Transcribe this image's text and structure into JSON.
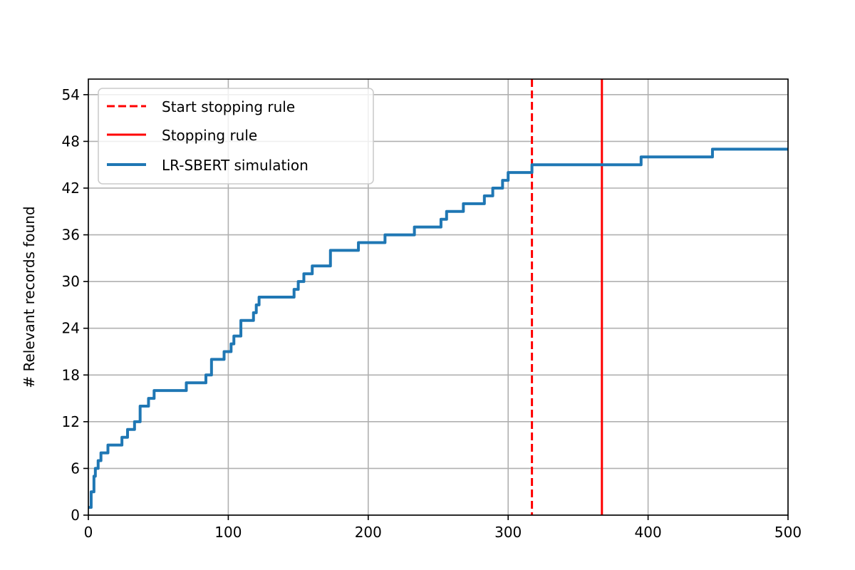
{
  "chart_data": {
    "type": "line",
    "title": "",
    "xlabel": "",
    "ylabel": "# Relevant records found",
    "xlim": [
      0,
      500
    ],
    "ylim": [
      0,
      56
    ],
    "xticks": [
      0,
      100,
      200,
      300,
      400,
      500
    ],
    "yticks": [
      0,
      6,
      12,
      18,
      24,
      30,
      36,
      42,
      48,
      54
    ],
    "grid": true,
    "legend_position": "top-left",
    "vlines": [
      {
        "name": "Start stopping rule",
        "x": 317,
        "style": "dashed",
        "color": "#ff0000"
      },
      {
        "name": "Stopping rule",
        "x": 367,
        "style": "solid",
        "color": "#ff0000"
      }
    ],
    "series": [
      {
        "name": "LR-SBERT simulation",
        "color": "#1f77b4",
        "step": true,
        "points": [
          [
            0,
            1
          ],
          [
            2,
            3
          ],
          [
            4,
            5
          ],
          [
            5,
            6
          ],
          [
            7,
            7
          ],
          [
            9,
            8
          ],
          [
            14,
            9
          ],
          [
            24,
            10
          ],
          [
            28,
            11
          ],
          [
            33,
            12
          ],
          [
            37,
            14
          ],
          [
            43,
            15
          ],
          [
            47,
            16
          ],
          [
            70,
            17
          ],
          [
            84,
            18
          ],
          [
            88,
            20
          ],
          [
            97,
            21
          ],
          [
            102,
            22
          ],
          [
            104,
            23
          ],
          [
            109,
            25
          ],
          [
            118,
            26
          ],
          [
            120,
            27
          ],
          [
            122,
            28
          ],
          [
            147,
            29
          ],
          [
            150,
            30
          ],
          [
            154,
            31
          ],
          [
            160,
            32
          ],
          [
            173,
            34
          ],
          [
            193,
            35
          ],
          [
            212,
            36
          ],
          [
            233,
            37
          ],
          [
            252,
            38
          ],
          [
            256,
            39
          ],
          [
            268,
            40
          ],
          [
            283,
            41
          ],
          [
            289,
            42
          ],
          [
            296,
            43
          ],
          [
            300,
            44
          ],
          [
            317,
            45
          ],
          [
            395,
            46
          ],
          [
            446,
            47
          ],
          [
            500,
            47
          ]
        ]
      }
    ]
  },
  "legend": [
    {
      "label": "Start stopping rule",
      "style": "dashed",
      "color": "#ff0000"
    },
    {
      "label": "Stopping rule",
      "style": "solid",
      "color": "#ff0000"
    },
    {
      "label": "LR-SBERT simulation",
      "style": "solid",
      "color": "#1f77b4"
    }
  ]
}
